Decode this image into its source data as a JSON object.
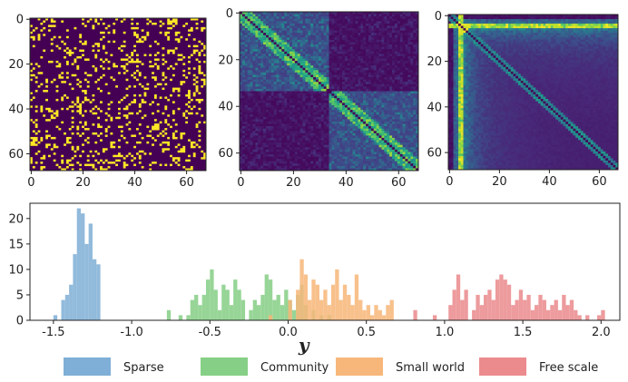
{
  "chart_data": [
    {
      "type": "heatmap",
      "title": "",
      "pattern": "sparse",
      "size": 68,
      "colormap": "viridis",
      "seed": 11,
      "density": 0.2,
      "x_ticks": [
        0,
        20,
        40,
        60
      ],
      "y_ticks": [
        0,
        20,
        40,
        60
      ],
      "x_tick_labels": [
        "0",
        "20",
        "40",
        "60"
      ],
      "y_tick_labels": [
        "0",
        "20",
        "40",
        "60"
      ]
    },
    {
      "type": "heatmap",
      "title": "",
      "pattern": "community",
      "size": 68,
      "colormap": "viridis",
      "seed": 23,
      "x_ticks": [
        0,
        20,
        40,
        60
      ],
      "y_ticks": [
        0,
        20,
        40,
        60
      ],
      "x_tick_labels": [
        "0",
        "20",
        "40",
        "60"
      ],
      "y_tick_labels": [
        "0",
        "20",
        "40",
        "60"
      ]
    },
    {
      "type": "heatmap",
      "title": "",
      "pattern": "free_scale",
      "size": 68,
      "colormap": "viridis",
      "seed": 37,
      "x_ticks": [
        0,
        20,
        40,
        60
      ],
      "y_ticks": [
        0,
        20,
        40,
        60
      ],
      "x_tick_labels": [
        "0",
        "20",
        "40",
        "60"
      ],
      "y_tick_labels": [
        "0",
        "20",
        "40",
        "60"
      ]
    },
    {
      "type": "bar",
      "subtype": "histogram",
      "title": "",
      "xlabel": "y",
      "ylabel": "",
      "xlim": [
        -1.65,
        2.12
      ],
      "ylim": [
        0,
        23
      ],
      "bin_width": 0.025,
      "x_ticks": [
        -1.5,
        -1.0,
        -0.5,
        0.0,
        0.5,
        1.0,
        1.5,
        2.0
      ],
      "x_tick_labels": [
        "-1.5",
        "-1.0",
        "-0.5",
        "0.0",
        "0.5",
        "1.0",
        "1.5",
        "2.0"
      ],
      "y_ticks": [
        0,
        5,
        10,
        15,
        20
      ],
      "y_tick_labels": [
        "0",
        "5",
        "10",
        "15",
        "20"
      ],
      "series": [
        {
          "name": "Sparse",
          "color": "#7fafd6",
          "bins": [
            [
              -1.5,
              1
            ],
            [
              -1.45,
              4
            ],
            [
              -1.425,
              5
            ],
            [
              -1.4,
              7
            ],
            [
              -1.375,
              13
            ],
            [
              -1.35,
              22
            ],
            [
              -1.325,
              21
            ],
            [
              -1.3,
              15
            ],
            [
              -1.275,
              19
            ],
            [
              -1.25,
              12
            ],
            [
              -1.225,
              11
            ]
          ]
        },
        {
          "name": "Community",
          "color": "#86cf86",
          "bins": [
            [
              -0.775,
              2
            ],
            [
              -0.7,
              1
            ],
            [
              -0.65,
              1
            ],
            [
              -0.625,
              4
            ],
            [
              -0.6,
              5
            ],
            [
              -0.575,
              3
            ],
            [
              -0.55,
              5
            ],
            [
              -0.525,
              8
            ],
            [
              -0.5,
              10
            ],
            [
              -0.475,
              6
            ],
            [
              -0.45,
              2
            ],
            [
              -0.425,
              7
            ],
            [
              -0.4,
              6
            ],
            [
              -0.375,
              3
            ],
            [
              -0.35,
              8
            ],
            [
              -0.325,
              6
            ],
            [
              -0.3,
              4
            ],
            [
              -0.25,
              2
            ],
            [
              -0.225,
              4
            ],
            [
              -0.2,
              3
            ],
            [
              -0.175,
              5
            ],
            [
              -0.15,
              9
            ],
            [
              -0.125,
              8
            ],
            [
              -0.1,
              4
            ],
            [
              -0.075,
              5
            ],
            [
              -0.05,
              3
            ],
            [
              -0.025,
              6
            ],
            [
              0.0,
              4
            ],
            [
              0.025,
              2
            ],
            [
              0.05,
              5
            ],
            [
              0.075,
              7
            ],
            [
              0.1,
              3
            ],
            [
              0.15,
              2
            ],
            [
              0.2,
              1
            ],
            [
              0.25,
              1
            ]
          ]
        },
        {
          "name": "Small world",
          "color": "#f7b77a",
          "bins": [
            [
              -0.125,
              1
            ],
            [
              0.0,
              4
            ],
            [
              0.05,
              6
            ],
            [
              0.075,
              12
            ],
            [
              0.1,
              9
            ],
            [
              0.125,
              4
            ],
            [
              0.15,
              8
            ],
            [
              0.175,
              7
            ],
            [
              0.2,
              4
            ],
            [
              0.225,
              6
            ],
            [
              0.25,
              3
            ],
            [
              0.275,
              7
            ],
            [
              0.3,
              10
            ],
            [
              0.325,
              4
            ],
            [
              0.35,
              7
            ],
            [
              0.375,
              5
            ],
            [
              0.4,
              3
            ],
            [
              0.425,
              9
            ],
            [
              0.45,
              4
            ],
            [
              0.475,
              2
            ],
            [
              0.5,
              3
            ],
            [
              0.525,
              1
            ],
            [
              0.55,
              3
            ],
            [
              0.575,
              2
            ],
            [
              0.6,
              1
            ],
            [
              0.625,
              3
            ],
            [
              0.65,
              4
            ]
          ]
        },
        {
          "name": "Free scale",
          "color": "#eb8b8e",
          "bins": [
            [
              0.8,
              2
            ],
            [
              0.925,
              1
            ],
            [
              1.025,
              3
            ],
            [
              1.05,
              6
            ],
            [
              1.075,
              9
            ],
            [
              1.1,
              4
            ],
            [
              1.125,
              6
            ],
            [
              1.175,
              2
            ],
            [
              1.2,
              5
            ],
            [
              1.225,
              3
            ],
            [
              1.25,
              5
            ],
            [
              1.275,
              6
            ],
            [
              1.3,
              4
            ],
            [
              1.325,
              8
            ],
            [
              1.35,
              9
            ],
            [
              1.375,
              8
            ],
            [
              1.4,
              7
            ],
            [
              1.425,
              3
            ],
            [
              1.45,
              4
            ],
            [
              1.475,
              6
            ],
            [
              1.5,
              4
            ],
            [
              1.525,
              5
            ],
            [
              1.55,
              2
            ],
            [
              1.575,
              3
            ],
            [
              1.6,
              5
            ],
            [
              1.625,
              4
            ],
            [
              1.65,
              2
            ],
            [
              1.675,
              3
            ],
            [
              1.7,
              4
            ],
            [
              1.725,
              2
            ],
            [
              1.75,
              5
            ],
            [
              1.775,
              3
            ],
            [
              1.8,
              4
            ],
            [
              1.825,
              2
            ],
            [
              1.85,
              1
            ],
            [
              1.9,
              1
            ],
            [
              1.975,
              1
            ],
            [
              2.0,
              2
            ]
          ]
        }
      ],
      "legend": [
        "Sparse",
        "Community",
        "Small world",
        "Free scale"
      ],
      "legend_position": "bottom"
    }
  ]
}
